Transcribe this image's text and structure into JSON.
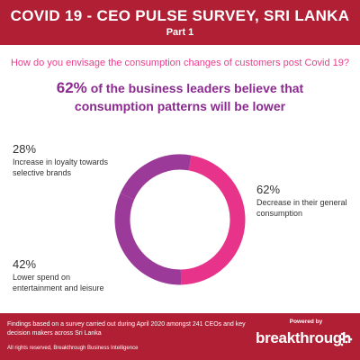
{
  "header": {
    "title": "COVID 19 - CEO PULSE SURVEY, SRI LANKA",
    "subtitle": "Part 1"
  },
  "question": "How do you envisage the consumption changes of customers post Covid 19?",
  "headline": {
    "pct": "62%",
    "text": "of the business leaders believe that consumption patterns will be lower"
  },
  "chart_data": {
    "type": "pie",
    "categories": [
      "Decrease in their general consumption",
      "Lower spend on entertainment and leisure",
      "Increase in loyalty towards selective brands"
    ],
    "values": [
      62,
      42,
      28
    ],
    "value_labels": [
      "62%",
      "42%",
      "28%"
    ],
    "colors": [
      "#e8338a",
      "#9b3a98",
      "#9b3a98"
    ],
    "legend": "none"
  },
  "footer": {
    "findings": "Findings based on a survey carried out during April 2020 amongst 241 CEOs and key decision makers across Sri Lanka",
    "rights": "All rights reserved, Breakthrough Business Intelligence",
    "powered": "Powered by",
    "brand": "breakthrough"
  }
}
